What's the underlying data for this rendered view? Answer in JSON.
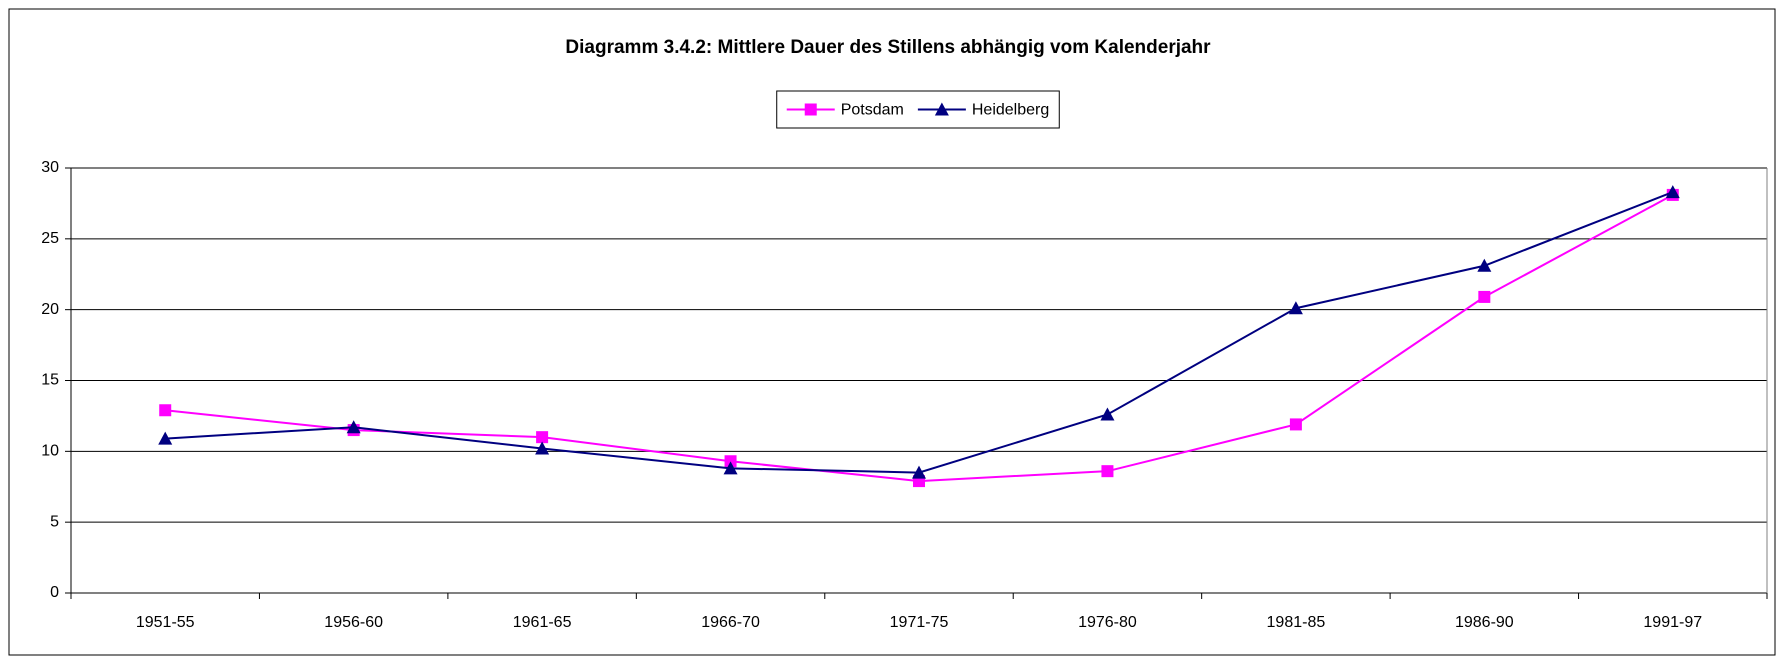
{
  "chart_data": {
    "type": "line",
    "title": "Diagramm 3.4.2: Mittlere Dauer des Stillens abhängig vom Kalenderjahr",
    "categories": [
      "1951-55",
      "1956-60",
      "1961-65",
      "1966-70",
      "1971-75",
      "1976-80",
      "1981-85",
      "1986-90",
      "1991-97"
    ],
    "series": [
      {
        "name": "Potsdam",
        "color": "#ff00ff",
        "marker": "square",
        "values": [
          12.9,
          11.5,
          11.0,
          9.3,
          7.9,
          8.6,
          11.9,
          20.9,
          28.1
        ]
      },
      {
        "name": "Heidelberg",
        "color": "#000080",
        "marker": "triangle",
        "values": [
          10.9,
          11.7,
          10.2,
          8.8,
          8.5,
          12.6,
          20.1,
          23.1,
          28.3
        ]
      }
    ],
    "ylim": [
      0,
      30
    ],
    "yticks": [
      0,
      5,
      10,
      15,
      20,
      25,
      30
    ],
    "grid": true,
    "legend": "top"
  }
}
